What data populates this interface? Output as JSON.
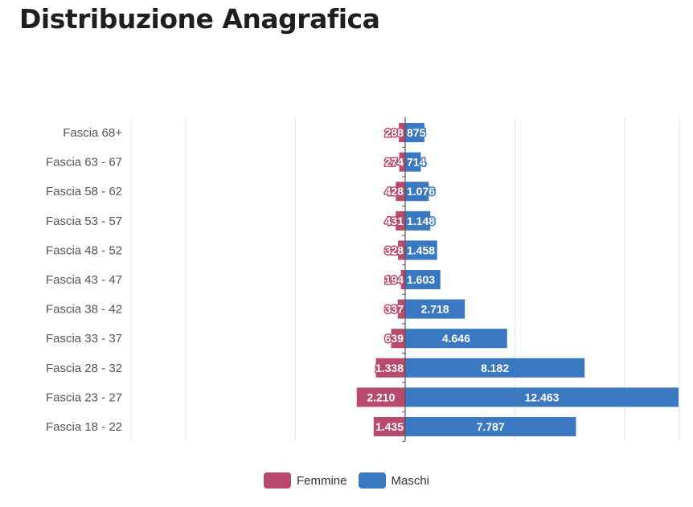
{
  "page": {
    "title": "Distribuzione Anagrafica"
  },
  "colors": {
    "femmine": "#b84a6e",
    "maschi": "#3a78c2",
    "grid": "#dde3ee",
    "axis": "#555555"
  },
  "chart_data": {
    "type": "bar",
    "orientation": "horizontal-diverging",
    "title": "Distribuzione Anagrafica",
    "categories": [
      "Fascia 68+",
      "Fascia 63 - 67",
      "Fascia 58 - 62",
      "Fascia 53 - 57",
      "Fascia 48 - 52",
      "Fascia 43 - 47",
      "Fascia 38 - 42",
      "Fascia 33 - 37",
      "Fascia 28 - 32",
      "Fascia 23 - 27",
      "Fascia 18 - 22"
    ],
    "series": [
      {
        "name": "Femmine",
        "values": [
          288,
          274,
          428,
          431,
          328,
          194,
          337,
          639,
          1338,
          2210,
          1435
        ],
        "labels": [
          "288",
          "274",
          "428",
          "431",
          "328",
          "194",
          "337",
          "639",
          "1.338",
          "2.210",
          "1.435"
        ]
      },
      {
        "name": "Maschi",
        "values": [
          875,
          714,
          1076,
          1148,
          1458,
          1603,
          2718,
          4646,
          8182,
          12463,
          7787
        ],
        "labels": [
          "875",
          "714",
          "1.076",
          "1.148",
          "1.458",
          "1.603",
          "2.718",
          "4.646",
          "8.182",
          "12.463",
          "7.787"
        ]
      }
    ],
    "xlim": [
      -12500,
      12500
    ],
    "grid": true,
    "legend": "bottom-center"
  }
}
